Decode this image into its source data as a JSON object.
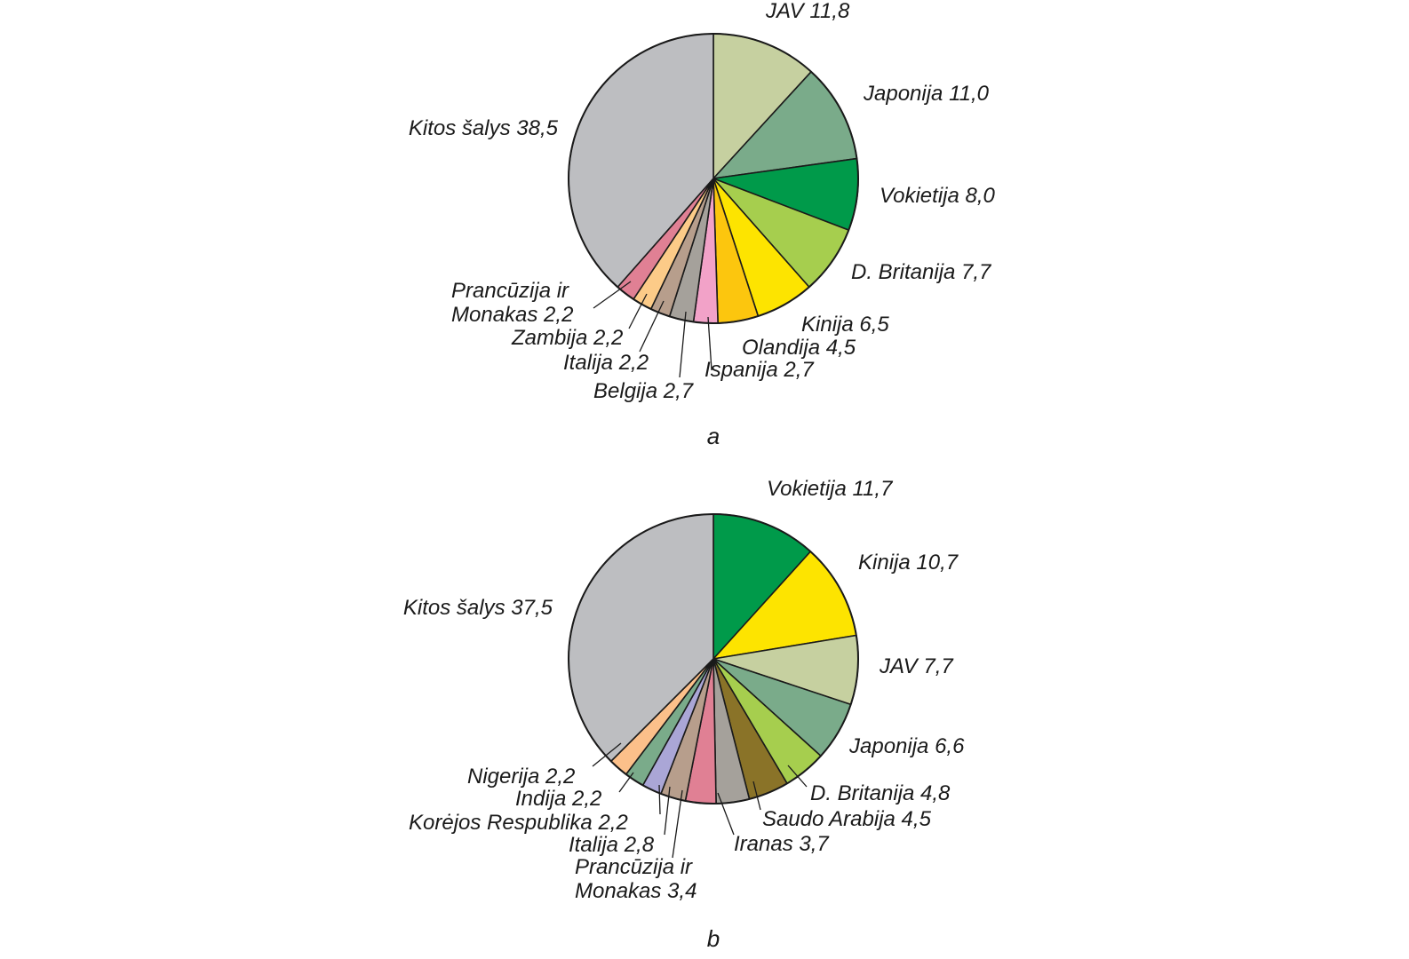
{
  "chart_data": [
    {
      "type": "pie",
      "panel_label": "a",
      "slices": [
        {
          "label": "JAV 11,8",
          "value": 11.8,
          "color": "#c6d0a0"
        },
        {
          "label": "Japonija 11,0",
          "value": 11.0,
          "color": "#7aab8a"
        },
        {
          "label": "Vokietija 8,0",
          "value": 8.0,
          "color": "#009a4a"
        },
        {
          "label": "D. Britanija 7,7",
          "value": 7.7,
          "color": "#a6ce4e"
        },
        {
          "label": "Kinija 6,5",
          "value": 6.5,
          "color": "#fde400"
        },
        {
          "label": "Olandija 4,5",
          "value": 4.5,
          "color": "#fcc60e"
        },
        {
          "label": "Ispanija 2,7",
          "value": 2.7,
          "color": "#f2a2c8"
        },
        {
          "label": "Belgija 2,7",
          "value": 2.7,
          "color": "#a5a19b"
        },
        {
          "label": "Italija 2,2",
          "value": 2.2,
          "color": "#b79e8c"
        },
        {
          "label": "Zambija 2,2",
          "value": 2.2,
          "color": "#fccb88"
        },
        {
          "label": "Prancūzija ir Monakas 2,2",
          "value": 2.2,
          "color": "#e08094"
        },
        {
          "label": "Kitos šalys 38,5",
          "value": 38.5,
          "color": "#bdbec1"
        }
      ]
    },
    {
      "type": "pie",
      "panel_label": "b",
      "slices": [
        {
          "label": "Vokietija 11,7",
          "value": 11.7,
          "color": "#009a4a"
        },
        {
          "label": "Kinija 10,7",
          "value": 10.7,
          "color": "#fde400"
        },
        {
          "label": "JAV 7,7",
          "value": 7.7,
          "color": "#c6d0a0"
        },
        {
          "label": "Japonija 6,6",
          "value": 6.6,
          "color": "#7aab8a"
        },
        {
          "label": "D. Britanija 4,8",
          "value": 4.8,
          "color": "#a6ce4e"
        },
        {
          "label": "Saudo Arabija 4,5",
          "value": 4.5,
          "color": "#8a7328"
        },
        {
          "label": "Iranas 3,7",
          "value": 3.7,
          "color": "#a5a19b"
        },
        {
          "label": "Prancūzija ir Monakas 3,4",
          "value": 3.4,
          "color": "#e08094"
        },
        {
          "label": "Italija 2,8",
          "value": 2.8,
          "color": "#b79e8c"
        },
        {
          "label": "Korėjos Respublika 2,2",
          "value": 2.2,
          "color": "#aaa6d6"
        },
        {
          "label": "Indija 2,2",
          "value": 2.2,
          "color": "#7aab8a"
        },
        {
          "label": "Nigerija 2,2",
          "value": 2.2,
          "color": "#fcc08a"
        },
        {
          "label": "Kitos šalys 37,5",
          "value": 37.5,
          "color": "#bdbec1"
        }
      ]
    }
  ]
}
